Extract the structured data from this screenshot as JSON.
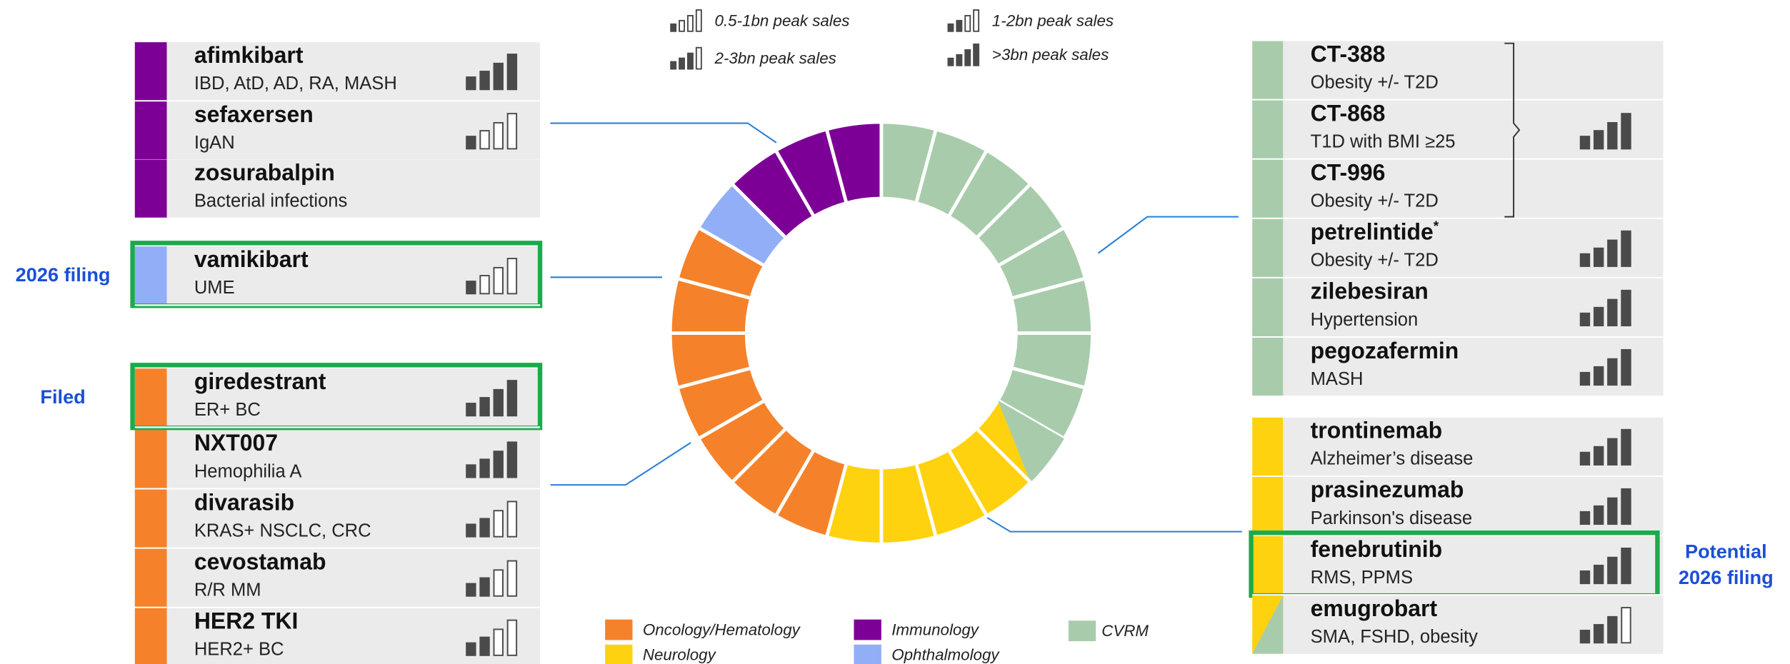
{
  "sales_legend": [
    {
      "label": "0.5-1bn peak sales",
      "filled": 1
    },
    {
      "label": "1-2bn peak sales",
      "filled": 2
    },
    {
      "label": "2-3bn peak sales",
      "filled": 3
    },
    {
      "label": ">3bn peak sales",
      "filled": 4
    }
  ],
  "area_legend": [
    {
      "label": "Oncology/Hematology",
      "color": "#f5822a"
    },
    {
      "label": "Neurology",
      "color": "#ffd20f"
    },
    {
      "label": "Immunology",
      "color": "#7d0096"
    },
    {
      "label": "Ophthalmology",
      "color": "#92aef7"
    },
    {
      "label": "CVRM",
      "color": "#a8ccab"
    }
  ],
  "left_cards": [
    {
      "name": "afimkibart",
      "indication": "IBD, AtD, AD, RA, MASH",
      "color": "#7d0096",
      "filled": 4
    },
    {
      "name": "sefaxersen",
      "indication": "IgAN",
      "color": "#7d0096",
      "filled": 1
    },
    {
      "name": "zosurabalpin",
      "indication": "Bacterial infections",
      "color": "#7d0096"
    },
    {
      "name": "vamikibart",
      "indication": "UME",
      "color": "#92aef7",
      "filled": 1,
      "highlight": true,
      "label": [
        "2026 filing"
      ]
    },
    {
      "name": "giredestrant",
      "indication": "ER+ BC",
      "color": "#f5822a",
      "filled": 4,
      "highlight": true,
      "label": [
        "Filed"
      ]
    },
    {
      "name": "NXT007",
      "indication": "Hemophilia A",
      "color": "#f5822a",
      "filled": 4
    },
    {
      "name": "divarasib",
      "indication": "KRAS+ NSCLC, CRC",
      "color": "#f5822a",
      "filled": 2
    },
    {
      "name": "cevostamab",
      "indication": "R/R MM",
      "color": "#f5822a",
      "filled": 2
    },
    {
      "name": "HER2 TKI",
      "indication": "HER2+ BC",
      "color": "#f5822a",
      "filled": 2
    }
  ],
  "right_cards": [
    {
      "name": "CT-388",
      "indication": "Obesity +/- T2D",
      "color": "#a8ccab"
    },
    {
      "name": "CT-868",
      "indication": "T1D with BMI ≥25",
      "color": "#a8ccab"
    },
    {
      "name": "CT-996",
      "indication": "Obesity +/- T2D",
      "color": "#a8ccab"
    },
    {
      "name": "petrelintide",
      "note_mark": "*",
      "indication": "Obesity +/- T2D",
      "color": "#a8ccab",
      "filled": 4
    },
    {
      "name": "zilebesiran",
      "indication": "Hypertension",
      "color": "#a8ccab",
      "filled": 4
    },
    {
      "name": "pegozafermin",
      "indication": "MASH",
      "color": "#a8ccab",
      "filled": 4
    },
    {
      "name": "trontinemab",
      "indication": "Alzheimer’s disease",
      "color": "#ffd20f",
      "filled": 4
    },
    {
      "name": "prasinezumab",
      "indication": "Parkinson's disease",
      "color": "#ffd20f",
      "filled": 4
    },
    {
      "name": "fenebrutinib",
      "indication": "RMS, PPMS",
      "color": "#ffd20f",
      "filled": 4,
      "highlight": true,
      "label": [
        "Potential",
        "2026 filing"
      ]
    },
    {
      "name": "emugrobart",
      "indication": "SMA, FSHD, obesity",
      "color": [
        "#ffd20f",
        "#a8ccab"
      ],
      "filled": 3
    }
  ],
  "bracket": {
    "rows": 3,
    "filled": 4
  }
}
